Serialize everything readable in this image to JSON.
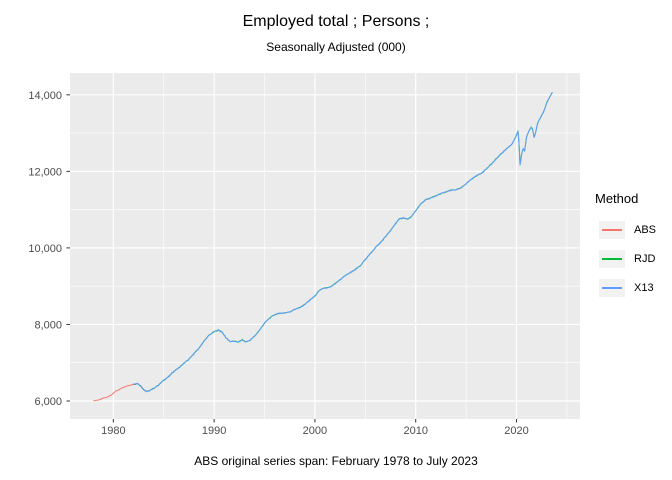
{
  "title": "Employed total ; Persons ;",
  "subtitle": "Seasonally Adjusted (000)",
  "caption": "ABS original series span: February 1978 to July 2023",
  "legend": {
    "title": "Method",
    "entries": [
      {
        "label": "ABS",
        "color": "#F8766D"
      },
      {
        "label": "RJD",
        "color": "#00BA38"
      },
      {
        "label": "X13",
        "color": "#619CFF"
      }
    ]
  },
  "theme": {
    "panel_bg": "#EBEBEB",
    "grid_color": "#FFFFFF",
    "legend_key_bg": "#F2F2F2",
    "tick_color": "#333333",
    "axis_text_color": "#4D4D4D"
  },
  "chart_data": {
    "type": "line",
    "title": "Employed total ; Persons ;",
    "subtitle": "Seasonally Adjusted (000)",
    "caption": "ABS original series span: February 1978 to July 2023",
    "xlabel": "",
    "ylabel": "",
    "grid": true,
    "legend_title": "Method",
    "legend_position": "right",
    "xlim": [
      1975.7,
      2026.3
    ],
    "ylim": [
      5530,
      14570
    ],
    "x_ticks": {
      "values": [
        1980,
        1990,
        2000,
        2010,
        2020
      ],
      "labels": [
        "1980",
        "1990",
        "2000",
        "2010",
        "2020"
      ]
    },
    "y_ticks": {
      "values": [
        6000,
        8000,
        10000,
        12000,
        14000
      ],
      "labels": [
        "6,000",
        "8,000",
        "10,000",
        "12,000",
        "14,000"
      ]
    },
    "x_minor": [
      1985,
      1995,
      2005,
      2015,
      2025
    ],
    "y_minor": [
      7000,
      9000,
      11000,
      13000
    ],
    "series": [
      {
        "name": "ABS",
        "color": "#F8766D",
        "points": [
          [
            1978.08,
            6005
          ],
          [
            1978.3,
            6020
          ],
          [
            1978.6,
            6028
          ],
          [
            1979.0,
            6075
          ],
          [
            1979.4,
            6100
          ],
          [
            1979.8,
            6160
          ],
          [
            1980.2,
            6250
          ],
          [
            1980.6,
            6300
          ],
          [
            1981.0,
            6355
          ],
          [
            1981.4,
            6395
          ],
          [
            1981.8,
            6425
          ],
          [
            1982.1,
            6442
          ],
          [
            1982.4,
            6462
          ],
          [
            1982.7,
            6398
          ],
          [
            1983.0,
            6308
          ],
          [
            1983.2,
            6255
          ]
        ]
      },
      {
        "name": "RJD",
        "color": "#00BA38",
        "points": [
          [
            1982.0,
            6435
          ],
          [
            1982.4,
            6458
          ],
          [
            1982.7,
            6395
          ],
          [
            1983.0,
            6305
          ],
          [
            1983.3,
            6245
          ],
          [
            1983.6,
            6270
          ],
          [
            1984.0,
            6330
          ],
          [
            1984.5,
            6420
          ],
          [
            1985.0,
            6545
          ],
          [
            1985.5,
            6640
          ],
          [
            1986.0,
            6775
          ],
          [
            1986.5,
            6870
          ],
          [
            1987.0,
            6985
          ],
          [
            1987.5,
            7090
          ],
          [
            1988.0,
            7240
          ],
          [
            1988.5,
            7380
          ],
          [
            1989.0,
            7570
          ],
          [
            1989.5,
            7720
          ],
          [
            1990.0,
            7810
          ],
          [
            1990.4,
            7855
          ],
          [
            1990.8,
            7800
          ],
          [
            1991.2,
            7640
          ],
          [
            1991.6,
            7555
          ],
          [
            1992.0,
            7560
          ],
          [
            1992.4,
            7540
          ],
          [
            1992.8,
            7600
          ],
          [
            1993.1,
            7545
          ],
          [
            1993.5,
            7575
          ],
          [
            1994.0,
            7690
          ],
          [
            1994.5,
            7850
          ],
          [
            1995.0,
            8035
          ],
          [
            1995.4,
            8145
          ],
          [
            1996.0,
            8255
          ],
          [
            1996.5,
            8290
          ],
          [
            1997.0,
            8300
          ],
          [
            1997.5,
            8330
          ],
          [
            1998.0,
            8395
          ],
          [
            1998.5,
            8440
          ],
          [
            1999.0,
            8525
          ],
          [
            1999.5,
            8635
          ],
          [
            2000.0,
            8745
          ],
          [
            2000.4,
            8875
          ],
          [
            2000.8,
            8945
          ],
          [
            2001.2,
            8955
          ],
          [
            2001.6,
            8985
          ],
          [
            2002.0,
            9065
          ],
          [
            2002.5,
            9170
          ],
          [
            2003.0,
            9275
          ],
          [
            2003.5,
            9355
          ],
          [
            2004.0,
            9435
          ],
          [
            2004.5,
            9530
          ],
          [
            2005.0,
            9700
          ],
          [
            2005.5,
            9850
          ],
          [
            2006.0,
            10010
          ],
          [
            2006.5,
            10135
          ],
          [
            2007.0,
            10295
          ],
          [
            2007.5,
            10450
          ],
          [
            2008.0,
            10640
          ],
          [
            2008.4,
            10760
          ],
          [
            2008.8,
            10785
          ],
          [
            2009.2,
            10750
          ],
          [
            2009.6,
            10820
          ],
          [
            2010.0,
            10970
          ],
          [
            2010.5,
            11150
          ],
          [
            2011.0,
            11260
          ],
          [
            2011.5,
            11305
          ],
          [
            2012.0,
            11360
          ],
          [
            2012.5,
            11420
          ],
          [
            2013.0,
            11460
          ],
          [
            2013.5,
            11505
          ],
          [
            2014.0,
            11520
          ],
          [
            2014.5,
            11565
          ],
          [
            2015.0,
            11680
          ],
          [
            2015.5,
            11790
          ],
          [
            2016.0,
            11880
          ],
          [
            2016.5,
            11950
          ],
          [
            2017.0,
            12060
          ],
          [
            2017.5,
            12190
          ],
          [
            2018.0,
            12330
          ],
          [
            2018.5,
            12465
          ],
          [
            2019.0,
            12590
          ],
          [
            2019.5,
            12700
          ],
          [
            2019.9,
            12880
          ],
          [
            2020.15,
            13050
          ],
          [
            2020.25,
            12720
          ],
          [
            2020.35,
            12160
          ],
          [
            2020.5,
            12430
          ],
          [
            2020.65,
            12600
          ],
          [
            2020.8,
            12530
          ],
          [
            2021.0,
            12900
          ],
          [
            2021.2,
            13040
          ],
          [
            2021.45,
            13150
          ],
          [
            2021.6,
            13090
          ],
          [
            2021.75,
            12890
          ],
          [
            2021.9,
            13020
          ],
          [
            2022.1,
            13270
          ],
          [
            2022.4,
            13420
          ],
          [
            2022.7,
            13560
          ],
          [
            2023.0,
            13780
          ],
          [
            2023.3,
            13950
          ],
          [
            2023.54,
            14060
          ]
        ]
      },
      {
        "name": "X13",
        "color": "#619CFF",
        "points": [
          [
            1982.0,
            6435
          ],
          [
            1982.4,
            6458
          ],
          [
            1982.7,
            6395
          ],
          [
            1983.0,
            6305
          ],
          [
            1983.3,
            6245
          ],
          [
            1983.6,
            6270
          ],
          [
            1984.0,
            6330
          ],
          [
            1984.5,
            6420
          ],
          [
            1985.0,
            6545
          ],
          [
            1985.5,
            6640
          ],
          [
            1986.0,
            6775
          ],
          [
            1986.5,
            6870
          ],
          [
            1987.0,
            6985
          ],
          [
            1987.5,
            7090
          ],
          [
            1988.0,
            7240
          ],
          [
            1988.5,
            7380
          ],
          [
            1989.0,
            7570
          ],
          [
            1989.5,
            7720
          ],
          [
            1990.0,
            7810
          ],
          [
            1990.4,
            7855
          ],
          [
            1990.8,
            7800
          ],
          [
            1991.2,
            7640
          ],
          [
            1991.6,
            7555
          ],
          [
            1992.0,
            7560
          ],
          [
            1992.4,
            7540
          ],
          [
            1992.8,
            7600
          ],
          [
            1993.1,
            7545
          ],
          [
            1993.5,
            7575
          ],
          [
            1994.0,
            7690
          ],
          [
            1994.5,
            7850
          ],
          [
            1995.0,
            8035
          ],
          [
            1995.4,
            8145
          ],
          [
            1996.0,
            8255
          ],
          [
            1996.5,
            8290
          ],
          [
            1997.0,
            8300
          ],
          [
            1997.5,
            8330
          ],
          [
            1998.0,
            8395
          ],
          [
            1998.5,
            8440
          ],
          [
            1999.0,
            8525
          ],
          [
            1999.5,
            8635
          ],
          [
            2000.0,
            8745
          ],
          [
            2000.4,
            8875
          ],
          [
            2000.8,
            8945
          ],
          [
            2001.2,
            8955
          ],
          [
            2001.6,
            8985
          ],
          [
            2002.0,
            9065
          ],
          [
            2002.5,
            9170
          ],
          [
            2003.0,
            9275
          ],
          [
            2003.5,
            9355
          ],
          [
            2004.0,
            9435
          ],
          [
            2004.5,
            9530
          ],
          [
            2005.0,
            9700
          ],
          [
            2005.5,
            9850
          ],
          [
            2006.0,
            10010
          ],
          [
            2006.5,
            10135
          ],
          [
            2007.0,
            10295
          ],
          [
            2007.5,
            10450
          ],
          [
            2008.0,
            10640
          ],
          [
            2008.4,
            10760
          ],
          [
            2008.8,
            10785
          ],
          [
            2009.2,
            10750
          ],
          [
            2009.6,
            10820
          ],
          [
            2010.0,
            10970
          ],
          [
            2010.5,
            11150
          ],
          [
            2011.0,
            11260
          ],
          [
            2011.5,
            11305
          ],
          [
            2012.0,
            11360
          ],
          [
            2012.5,
            11420
          ],
          [
            2013.0,
            11460
          ],
          [
            2013.5,
            11505
          ],
          [
            2014.0,
            11520
          ],
          [
            2014.5,
            11565
          ],
          [
            2015.0,
            11680
          ],
          [
            2015.5,
            11790
          ],
          [
            2016.0,
            11880
          ],
          [
            2016.5,
            11950
          ],
          [
            2017.0,
            12060
          ],
          [
            2017.5,
            12190
          ],
          [
            2018.0,
            12330
          ],
          [
            2018.5,
            12465
          ],
          [
            2019.0,
            12590
          ],
          [
            2019.5,
            12700
          ],
          [
            2019.9,
            12880
          ],
          [
            2020.15,
            13050
          ],
          [
            2020.25,
            12720
          ],
          [
            2020.35,
            12160
          ],
          [
            2020.5,
            12430
          ],
          [
            2020.65,
            12600
          ],
          [
            2020.8,
            12530
          ],
          [
            2021.0,
            12900
          ],
          [
            2021.2,
            13040
          ],
          [
            2021.45,
            13150
          ],
          [
            2021.6,
            13090
          ],
          [
            2021.75,
            12890
          ],
          [
            2021.9,
            13020
          ],
          [
            2022.1,
            13270
          ],
          [
            2022.4,
            13420
          ],
          [
            2022.7,
            13560
          ],
          [
            2023.0,
            13780
          ],
          [
            2023.3,
            13950
          ],
          [
            2023.54,
            14060
          ]
        ]
      }
    ]
  }
}
